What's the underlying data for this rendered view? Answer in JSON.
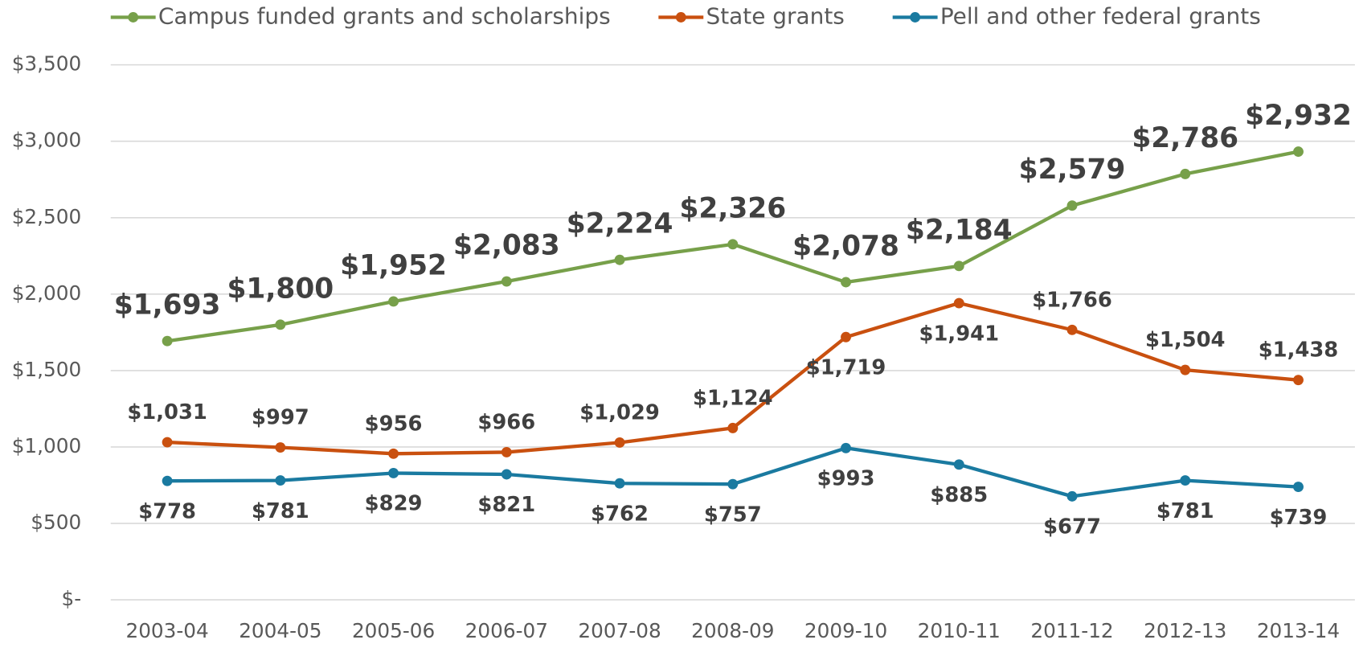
{
  "chart_data": {
    "type": "line",
    "categories": [
      "2003-04",
      "2004-05",
      "2005-06",
      "2006-07",
      "2007-08",
      "2008-09",
      "2009-10",
      "2010-11",
      "2011-12",
      "2012-13",
      "2013-14"
    ],
    "series": [
      {
        "name": "Campus funded grants and scholarships",
        "color": "#77a04a",
        "values": [
          1693,
          1800,
          1952,
          2083,
          2224,
          2326,
          2078,
          2184,
          2579,
          2786,
          2932
        ],
        "value_labels": [
          "$1,693",
          "$1,800",
          "$1,952",
          "$2,083",
          "$2,224",
          "$2,326",
          "$2,078",
          "$2,184",
          "$2,579",
          "$2,786",
          "$2,932"
        ]
      },
      {
        "name": "State grants",
        "color": "#c9500f",
        "values": [
          1031,
          997,
          956,
          966,
          1029,
          1124,
          1719,
          1941,
          1766,
          1504,
          1438
        ],
        "value_labels": [
          "$1,031",
          "$997",
          "$956",
          "$966",
          "$1,029",
          "$1,124",
          "$1,719",
          "$1,941",
          "$1,766",
          "$1,504",
          "$1,438"
        ]
      },
      {
        "name": "Pell and other federal grants",
        "color": "#1a7aa0",
        "values": [
          778,
          781,
          829,
          821,
          762,
          757,
          993,
          885,
          677,
          781,
          739
        ],
        "value_labels": [
          "$778",
          "$781",
          "$829",
          "$821",
          "$762",
          "$757",
          "$993",
          "$885",
          "$677",
          "$781",
          "$739"
        ]
      }
    ],
    "ylim": [
      0,
      3500
    ],
    "yticks": [
      {
        "value": 0,
        "label": "$-"
      },
      {
        "value": 500,
        "label": "$500"
      },
      {
        "value": 1000,
        "label": "$1,000"
      },
      {
        "value": 1500,
        "label": "$1,500"
      },
      {
        "value": 2000,
        "label": "$2,000"
      },
      {
        "value": 2500,
        "label": "$2,500"
      },
      {
        "value": 3000,
        "label": "$3,000"
      },
      {
        "value": 3500,
        "label": "$3,500"
      }
    ],
    "grid": true,
    "legend": "top"
  }
}
